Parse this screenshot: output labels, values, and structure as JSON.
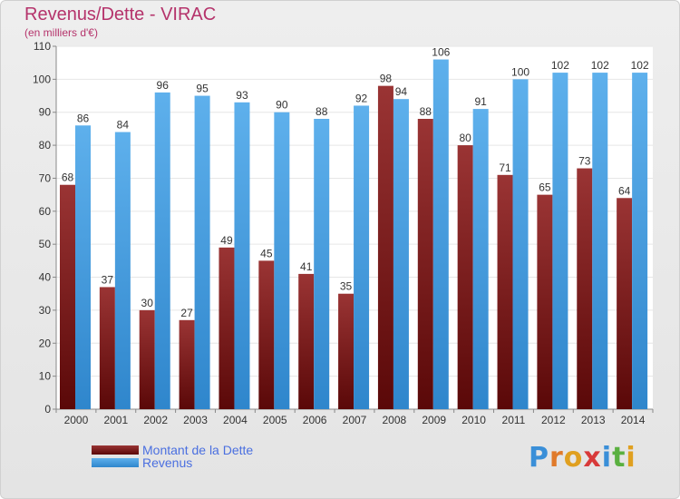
{
  "title": "Revenus/Dette - VIRAC",
  "subtitle": "(en milliers d'€)",
  "logo_text": "Proxiti",
  "colors": {
    "dette": "#7a1a1a",
    "revenus": "#4a9fe0",
    "title": "#b5336b",
    "legend_text": "#4a6fe0"
  },
  "legend": [
    {
      "label": "Montant de la Dette",
      "color": "#7a1a1a"
    },
    {
      "label": "Revenus",
      "color": "#4a9fe0"
    }
  ],
  "chart_data": {
    "type": "bar",
    "title": "Revenus/Dette - VIRAC",
    "subtitle": "(en milliers d'€)",
    "categories": [
      "2000",
      "2001",
      "2002",
      "2003",
      "2004",
      "2005",
      "2006",
      "2007",
      "2008",
      "2009",
      "2010",
      "2011",
      "2012",
      "2013",
      "2014"
    ],
    "series": [
      {
        "name": "Montant de la Dette",
        "values": [
          68,
          37,
          30,
          27,
          49,
          45,
          41,
          35,
          98,
          88,
          80,
          71,
          65,
          73,
          64
        ]
      },
      {
        "name": "Revenus",
        "values": [
          86,
          84,
          96,
          95,
          93,
          90,
          88,
          92,
          94,
          106,
          91,
          100,
          102,
          102,
          102
        ]
      }
    ],
    "ylim": [
      0,
      110
    ],
    "yticks": [
      0,
      10,
      20,
      30,
      40,
      50,
      60,
      70,
      80,
      90,
      100,
      110
    ],
    "grid": true,
    "legend_position": "bottom-left"
  }
}
